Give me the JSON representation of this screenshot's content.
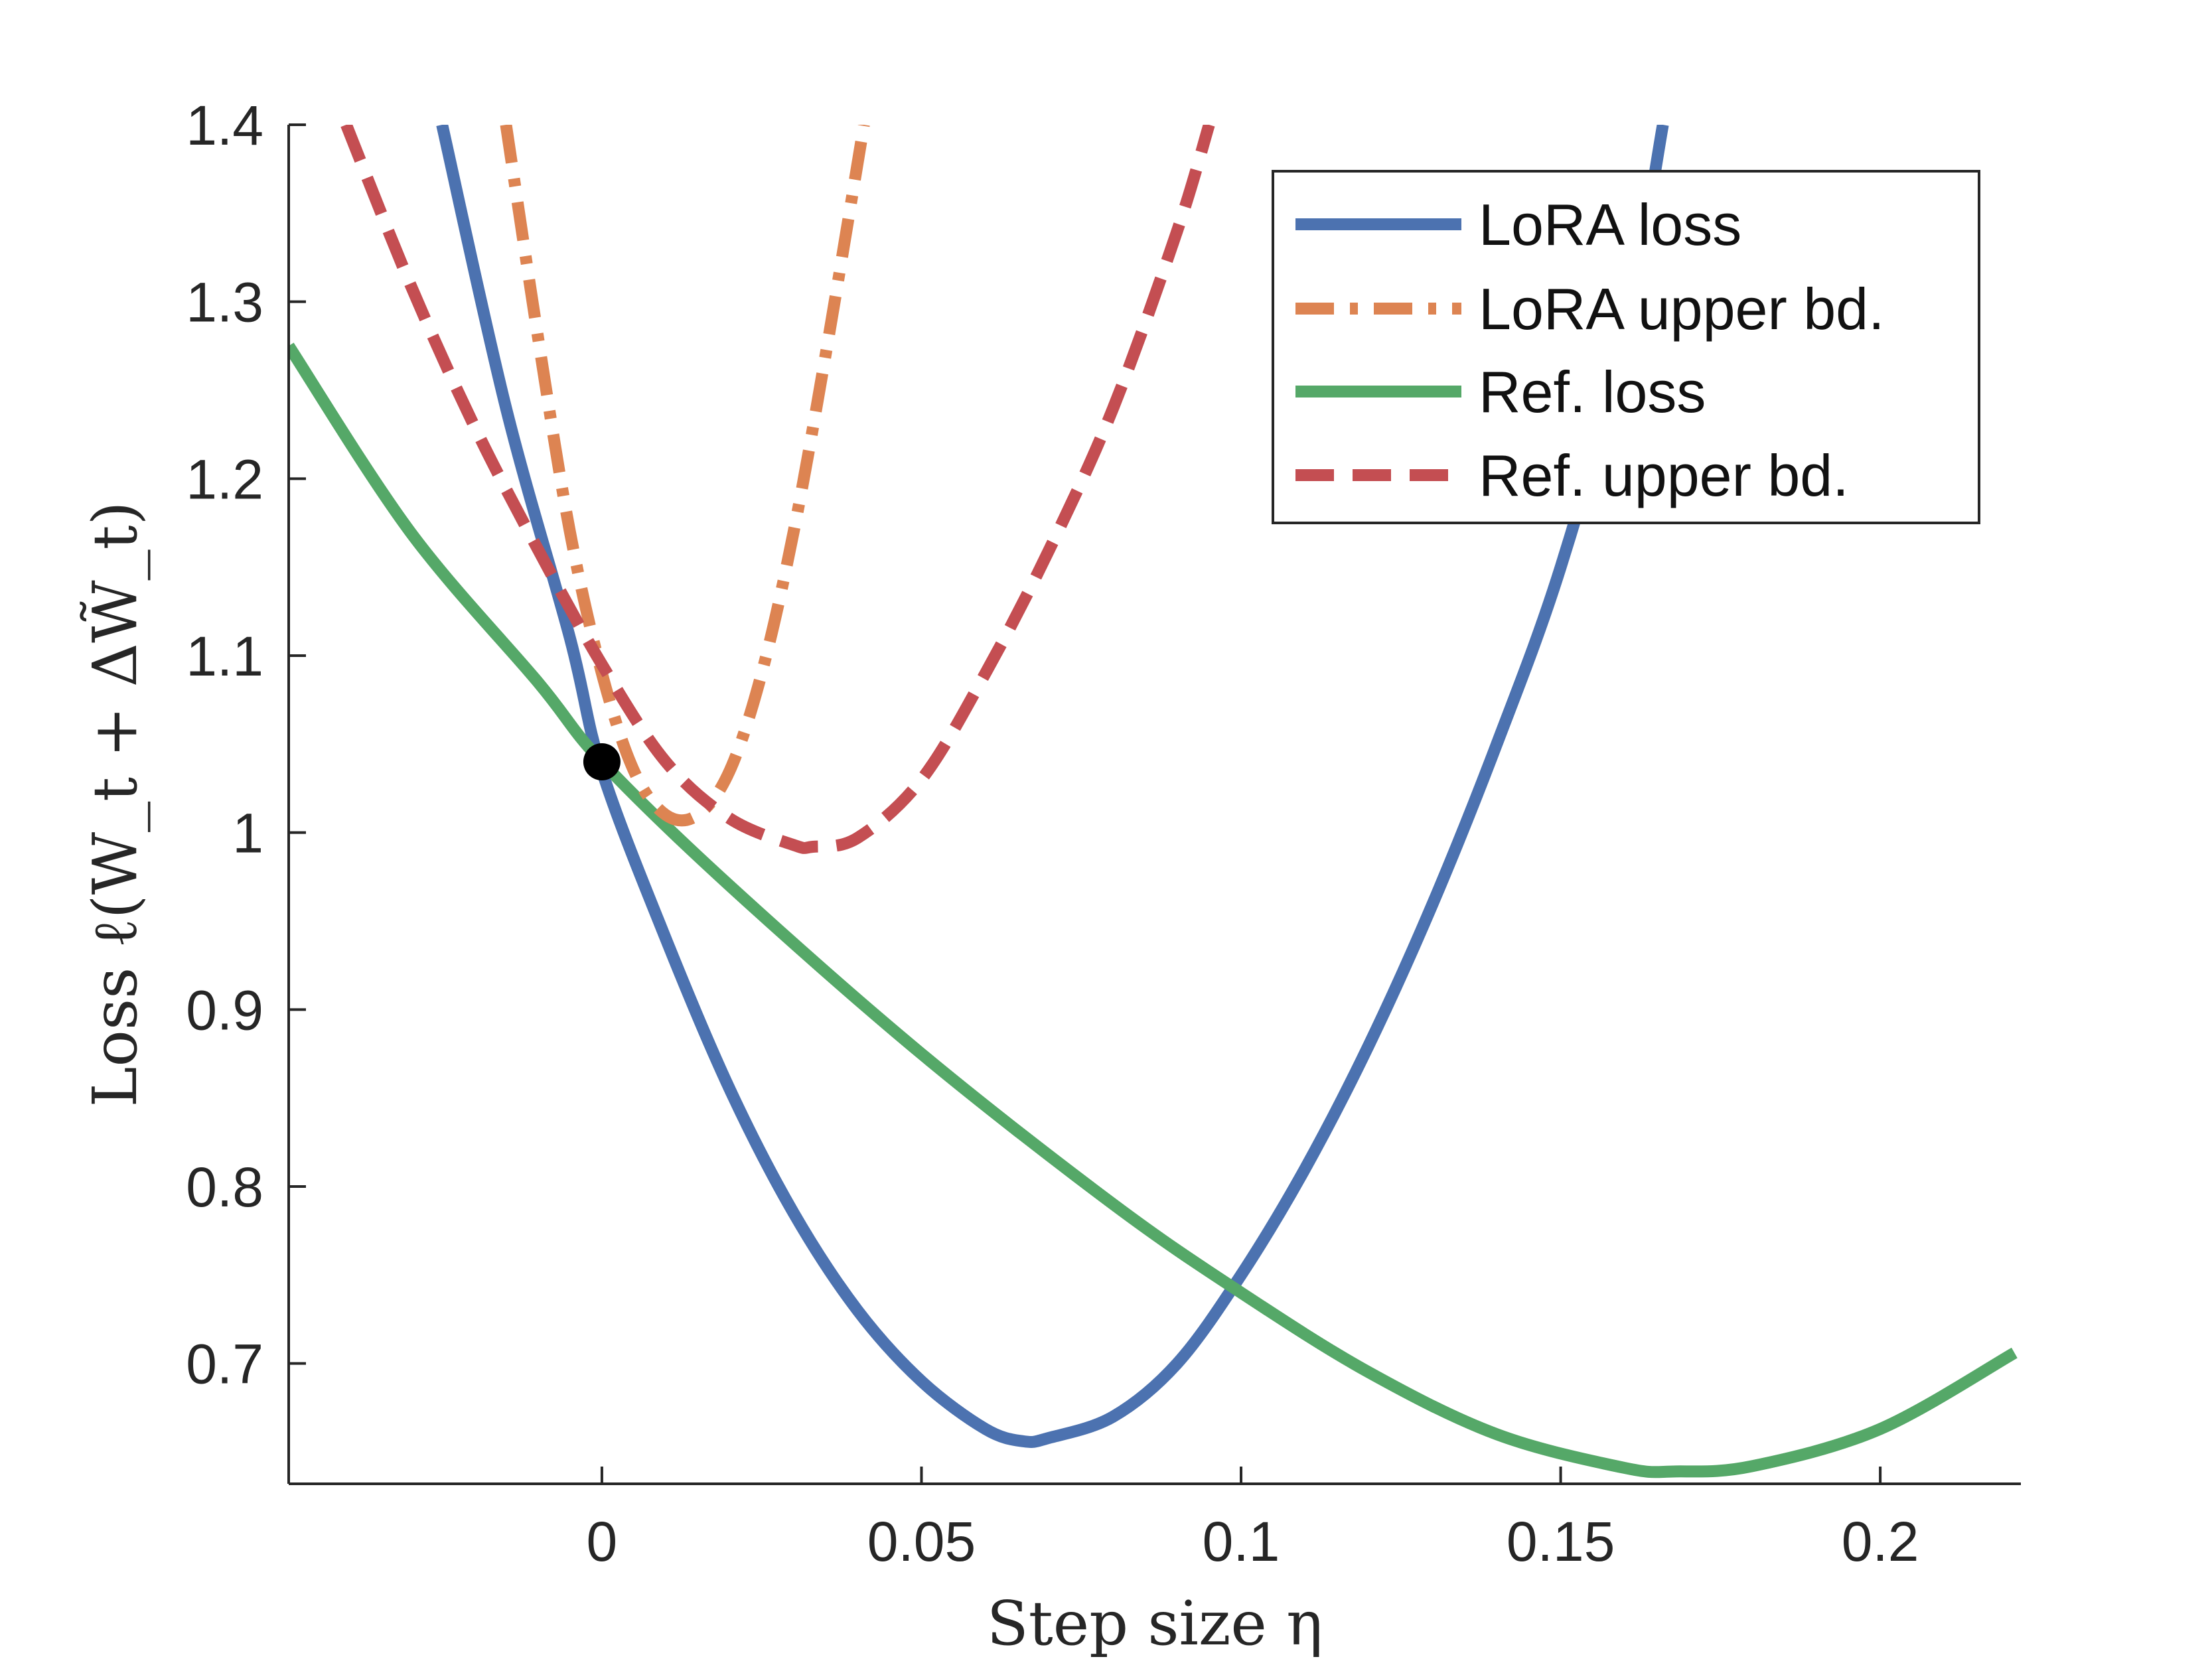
{
  "chart_data": {
    "type": "line",
    "xlabel": "Step size η",
    "ylabel": "Loss ℓ(W_t + ΔW̃_t)",
    "xlim": [
      -0.049,
      0.222
    ],
    "ylim": [
      0.632,
      1.4
    ],
    "x_ticks": [
      0,
      0.05,
      0.1,
      0.15,
      0.2
    ],
    "x_tick_labels": [
      "0",
      "0.05",
      "0.1",
      "0.15",
      "0.2"
    ],
    "y_ticks": [
      0.7,
      0.8,
      0.9,
      1.0,
      1.1,
      1.2,
      1.3,
      1.4
    ],
    "y_tick_labels": [
      "0.7",
      "0.8",
      "0.9",
      "1",
      "1.1",
      "1.2",
      "1.3",
      "1.4"
    ],
    "grid": false,
    "legend_position": "top-right",
    "series": [
      {
        "name": "LoRA loss",
        "style": "solid",
        "color": "#4c72b0",
        "x": [
          -0.025,
          -0.015,
          -0.005,
          0,
          0.01,
          0.02,
          0.03,
          0.04,
          0.05,
          0.06,
          0.066,
          0.07,
          0.08,
          0.09,
          0.1,
          0.11,
          0.12,
          0.13,
          0.14,
          0.15,
          0.16,
          0.166
        ],
        "y": [
          1.4,
          1.24,
          1.11,
          1.035,
          0.94,
          0.855,
          0.785,
          0.73,
          0.69,
          0.663,
          0.656,
          0.658,
          0.67,
          0.7,
          0.75,
          0.81,
          0.88,
          0.96,
          1.05,
          1.15,
          1.28,
          1.4
        ]
      },
      {
        "name": "LoRA upper bd.",
        "style": "dashdot",
        "color": "#dd8452",
        "x": [
          -0.015,
          -0.01,
          -0.005,
          0,
          0.005,
          0.01,
          0.015,
          0.02,
          0.025,
          0.03,
          0.035,
          0.041
        ],
        "y": [
          1.4,
          1.28,
          1.17,
          1.09,
          1.035,
          1.01,
          1.01,
          1.035,
          1.09,
          1.17,
          1.27,
          1.4
        ]
      },
      {
        "name": "Ref. loss",
        "style": "solid",
        "color": "#55a868",
        "x": [
          -0.049,
          -0.03,
          -0.01,
          0,
          0.02,
          0.05,
          0.08,
          0.1,
          0.12,
          0.14,
          0.16,
          0.168,
          0.18,
          0.2,
          0.221
        ],
        "y": [
          1.275,
          1.17,
          1.085,
          1.04,
          0.97,
          0.875,
          0.79,
          0.74,
          0.695,
          0.66,
          0.641,
          0.639,
          0.642,
          0.663,
          0.706
        ]
      },
      {
        "name": "Ref. upper bd.",
        "style": "dashed",
        "color": "#c44e52",
        "x": [
          -0.04,
          -0.03,
          -0.02,
          -0.01,
          0,
          0.01,
          0.02,
          0.03,
          0.033,
          0.04,
          0.05,
          0.06,
          0.07,
          0.08,
          0.09,
          0.095
        ],
        "y": [
          1.4,
          1.31,
          1.23,
          1.16,
          1.095,
          1.04,
          1.008,
          0.993,
          0.992,
          0.997,
          1.03,
          1.09,
          1.16,
          1.24,
          1.34,
          1.4
        ]
      }
    ],
    "annotations": [
      {
        "type": "point",
        "x": 0,
        "y": 1.04,
        "color": "#000000"
      }
    ]
  }
}
